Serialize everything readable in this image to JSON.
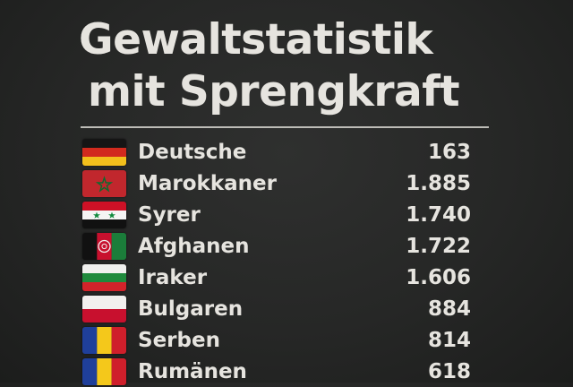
{
  "title": {
    "line1": "Gewaltstatistik",
    "line2": "mit Sprengkraft"
  },
  "rows": [
    {
      "label": "Deutsche",
      "value": "163",
      "flag_icon": "germany-flag-icon"
    },
    {
      "label": "Marokkaner",
      "value": "1.885",
      "flag_icon": "morocco-flag-icon"
    },
    {
      "label": "Syrer",
      "value": "1.740",
      "flag_icon": "syria-flag-icon"
    },
    {
      "label": "Afghanen",
      "value": "1.722",
      "flag_icon": "afghanistan-flag-icon"
    },
    {
      "label": "Iraker",
      "value": "1.606",
      "flag_icon": "iraq-flag-icon"
    },
    {
      "label": "Bulgaren",
      "value": "884",
      "flag_icon": "bulgaria-flag-icon"
    },
    {
      "label": "Serben",
      "value": "814",
      "flag_icon": "serbia-flag-icon"
    },
    {
      "label": "Rumänen",
      "value": "618",
      "flag_icon": "romania-flag-icon"
    }
  ],
  "colors": {
    "background": "#262726",
    "text": "#e6e4df",
    "divider": "#bdbcb7"
  }
}
